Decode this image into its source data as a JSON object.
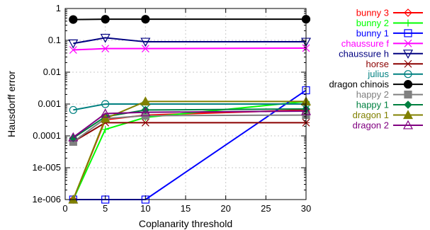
{
  "chart_data": {
    "type": "line",
    "title": "",
    "xlabel": "Coplanarity threshold",
    "ylabel": "Hausdorff error",
    "x_scale": "linear",
    "y_scale": "log",
    "xlim": [
      0,
      30
    ],
    "ylim": [
      1e-06,
      1
    ],
    "x_ticks": [
      0,
      5,
      10,
      15,
      20,
      25,
      30
    ],
    "x_tick_labels": [
      "0",
      "5",
      "10",
      "15",
      "20",
      "25",
      "30"
    ],
    "y_ticks": [
      1e-06,
      1e-05,
      0.0001,
      0.001,
      0.01,
      0.1,
      1
    ],
    "y_tick_labels": [
      "1e-006",
      "1e-005",
      "0.0001",
      "0.001",
      "0.01",
      "0.1",
      "1"
    ],
    "grid": true,
    "legend_position": "outside-right",
    "x": [
      1,
      5,
      10,
      30
    ],
    "series": [
      {
        "name": "bunny 3",
        "color": "#ff0000",
        "marker": "diamond-open",
        "values": [
          1e-06,
          0.00032,
          0.00045,
          0.00065
        ]
      },
      {
        "name": "bunny 2",
        "color": "#00ff00",
        "marker": "plus",
        "values": [
          1e-06,
          0.00016,
          0.00038,
          0.0012
        ]
      },
      {
        "name": "bunny 1",
        "color": "#0000ff",
        "marker": "square-open",
        "values": [
          1e-06,
          1e-06,
          1e-06,
          0.0027
        ]
      },
      {
        "name": "chaussure f",
        "color": "#ff00ff",
        "marker": "x",
        "values": [
          0.05,
          0.055,
          0.055,
          0.057
        ]
      },
      {
        "name": "chaussure h",
        "color": "#000080",
        "marker": "triangle-down-open",
        "values": [
          0.08,
          0.12,
          0.09,
          0.09
        ]
      },
      {
        "name": "horse",
        "color": "#8b0000",
        "marker": "asterisk",
        "values": [
          6.5e-05,
          0.00026,
          0.00026,
          0.00026
        ]
      },
      {
        "name": "julius",
        "color": "#008080",
        "marker": "circle-open",
        "values": [
          0.00065,
          0.001,
          0.001,
          0.001
        ]
      },
      {
        "name": "dragon chinois",
        "color": "#000000",
        "marker": "circle-filled",
        "values": [
          0.45,
          0.46,
          0.46,
          0.46
        ]
      },
      {
        "name": "happy 2",
        "color": "#808080",
        "marker": "square-filled",
        "values": [
          6.5e-05,
          0.00035,
          0.00043,
          0.00045
        ]
      },
      {
        "name": "happy 1",
        "color": "#008040",
        "marker": "diamond-filled",
        "values": [
          8.5e-05,
          0.0004,
          0.00065,
          0.0007
        ]
      },
      {
        "name": "dragon 1",
        "color": "#808000",
        "marker": "triangle-filled",
        "values": [
          1e-06,
          0.00035,
          0.0012,
          0.0012
        ]
      },
      {
        "name": "dragon 2",
        "color": "#800080",
        "marker": "triangle-open",
        "values": [
          9e-05,
          0.0005,
          0.00055,
          0.0006
        ]
      }
    ]
  }
}
